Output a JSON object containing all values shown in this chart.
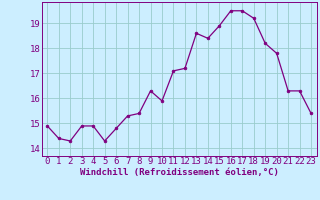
{
  "x": [
    0,
    1,
    2,
    3,
    4,
    5,
    6,
    7,
    8,
    9,
    10,
    11,
    12,
    13,
    14,
    15,
    16,
    17,
    18,
    19,
    20,
    21,
    22,
    23
  ],
  "y": [
    14.9,
    14.4,
    14.3,
    14.9,
    14.9,
    14.3,
    14.8,
    15.3,
    15.4,
    16.3,
    15.9,
    17.1,
    17.2,
    18.6,
    18.4,
    18.9,
    19.5,
    19.5,
    19.2,
    18.2,
    17.8,
    16.3,
    16.3,
    15.4
  ],
  "line_color": "#800080",
  "marker": "o",
  "marker_size": 2.0,
  "bg_color": "#cceeff",
  "grid_color": "#99cccc",
  "xlabel": "Windchill (Refroidissement éolien,°C)",
  "xlabel_fontsize": 6.5,
  "ylabel_ticks": [
    14,
    15,
    16,
    17,
    18,
    19
  ],
  "xticks": [
    0,
    1,
    2,
    3,
    4,
    5,
    6,
    7,
    8,
    9,
    10,
    11,
    12,
    13,
    14,
    15,
    16,
    17,
    18,
    19,
    20,
    21,
    22,
    23
  ],
  "ylim": [
    13.7,
    19.85
  ],
  "xlim": [
    -0.5,
    23.5
  ],
  "tick_color": "#800080",
  "tick_fontsize": 6.5
}
